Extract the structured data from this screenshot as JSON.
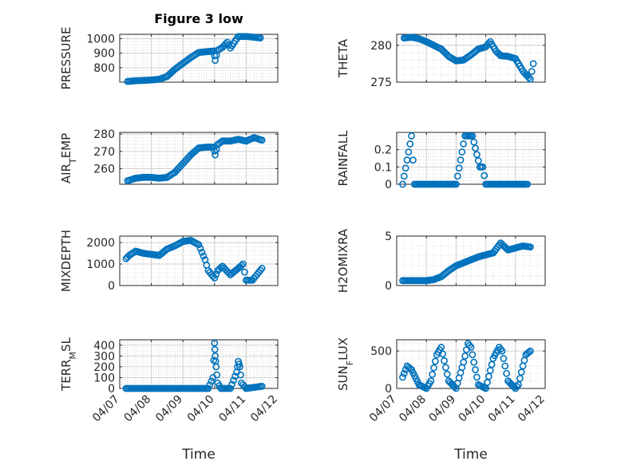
{
  "figure_title": "Figure 3 low",
  "x_axis_label": "Time",
  "x_tick_labels": [
    "04/07",
    "04/08",
    "04/09",
    "04/10",
    "04/11",
    "04/12"
  ],
  "marker_color": "#0072BD",
  "chart_data": [
    {
      "type": "scatter",
      "title": "Figure 3 low",
      "ylabel": "PRESSURE",
      "xlabel": "",
      "xlim": [
        0,
        5
      ],
      "ylim": [
        700,
        1030
      ],
      "grid": true,
      "yticks": [
        800,
        900,
        1000
      ],
      "ytick_labels": [
        "800",
        "900",
        "1000"
      ],
      "x": [
        0.25,
        0.5,
        0.75,
        1.0,
        1.25,
        1.5,
        1.75,
        2.0,
        2.25,
        2.5,
        2.75,
        2.98,
        3.02,
        3.1,
        3.25,
        3.4,
        3.5,
        3.75,
        4.0,
        4.25,
        4.45
      ],
      "y": [
        705,
        710,
        712,
        715,
        720,
        740,
        790,
        830,
        870,
        905,
        910,
        915,
        850,
        920,
        940,
        975,
        935,
        1015,
        1015,
        1010,
        1005
      ],
      "series": [
        {
          "name": "",
          "values": []
        }
      ]
    },
    {
      "type": "scatter",
      "title": "",
      "ylabel": "THETA",
      "xlabel": "",
      "xlim": [
        0,
        5
      ],
      "ylim": [
        275,
        281.5
      ],
      "grid": true,
      "yticks": [
        275,
        280
      ],
      "ytick_labels": [
        "275",
        "280"
      ],
      "x": [
        0.25,
        0.5,
        0.75,
        1.0,
        1.25,
        1.5,
        1.75,
        2.0,
        2.25,
        2.5,
        2.75,
        3.0,
        3.15,
        3.35,
        3.5,
        3.75,
        4.0,
        4.25,
        4.5,
        4.6
      ],
      "y": [
        281,
        281.1,
        280.9,
        280.5,
        280,
        279.5,
        278.5,
        277.9,
        278,
        278.7,
        279.5,
        279.8,
        280.5,
        279.2,
        278.6,
        278.5,
        278.2,
        276.5,
        275.4,
        277.5
      ]
    },
    {
      "type": "scatter",
      "title": "",
      "ylabel": "AIR_T EMP",
      "xlabel": "",
      "xlim": [
        0,
        5
      ],
      "ylim": [
        251,
        281
      ],
      "grid": true,
      "yticks": [
        260,
        270,
        280
      ],
      "ytick_labels": [
        "260",
        "270",
        "280"
      ],
      "x": [
        0.25,
        0.5,
        0.75,
        1.0,
        1.25,
        1.5,
        1.75,
        2.0,
        2.25,
        2.5,
        2.75,
        2.98,
        3.02,
        3.1,
        3.25,
        3.5,
        3.75,
        4.0,
        4.25,
        4.5
      ],
      "y": [
        253,
        254.5,
        255,
        255,
        254.5,
        255,
        258,
        263,
        268,
        272,
        272.5,
        272.5,
        268,
        274,
        276,
        276,
        277,
        276,
        278,
        276.5
      ]
    },
    {
      "type": "scatter",
      "title": "",
      "ylabel": "RAINFALL",
      "xlabel": "",
      "xlim": [
        0,
        5
      ],
      "ylim": [
        0,
        0.3
      ],
      "grid": true,
      "yticks": [
        0,
        0.1,
        0.2
      ],
      "ytick_labels": [
        "0",
        "0.1",
        "0.2"
      ],
      "x": [
        0.2,
        0.5,
        0.6,
        1.0,
        1.5,
        2.0,
        2.3,
        2.55,
        2.8,
        2.9,
        3.0,
        3.5,
        4.0,
        4.4
      ],
      "y": [
        0,
        0.28,
        0,
        0,
        0,
        0,
        0.28,
        0.28,
        0.1,
        0.1,
        0,
        0,
        0,
        0
      ]
    },
    {
      "type": "scatter",
      "title": "",
      "ylabel": "MIXDEPTH",
      "xlabel": "",
      "xlim": [
        0,
        5
      ],
      "ylim": [
        0,
        2300
      ],
      "grid": true,
      "yticks": [
        0,
        1000,
        2000
      ],
      "ytick_labels": [
        "0",
        "1000",
        "2000"
      ],
      "x": [
        0.2,
        0.3,
        0.5,
        0.75,
        1.0,
        1.25,
        1.5,
        1.75,
        2.0,
        2.25,
        2.5,
        2.7,
        2.8,
        3.0,
        3.1,
        3.25,
        3.5,
        3.75,
        3.9,
        4.0,
        4.2,
        4.5
      ],
      "y": [
        1250,
        1400,
        1600,
        1500,
        1450,
        1400,
        1700,
        1850,
        2050,
        2100,
        1900,
        1200,
        700,
        350,
        700,
        900,
        500,
        800,
        1000,
        250,
        250,
        800
      ]
    },
    {
      "type": "scatter",
      "title": "",
      "ylabel": "H2OMIXRA",
      "xlabel": "",
      "xlim": [
        0,
        5
      ],
      "ylim": [
        0,
        5
      ],
      "grid": true,
      "yticks": [
        0,
        5
      ],
      "ytick_labels": [
        "0",
        "5"
      ],
      "x": [
        0.2,
        0.5,
        0.75,
        1.0,
        1.25,
        1.5,
        1.75,
        2.0,
        2.25,
        2.5,
        2.75,
        3.0,
        3.25,
        3.5,
        3.75,
        4.0,
        4.25,
        4.5
      ],
      "y": [
        0.5,
        0.5,
        0.5,
        0.5,
        0.6,
        0.9,
        1.5,
        2.0,
        2.3,
        2.6,
        2.9,
        3.1,
        3.3,
        4.3,
        3.6,
        3.8,
        4.0,
        3.9
      ]
    },
    {
      "type": "scatter",
      "title": "",
      "ylabel": "TERR_M SL",
      "xlabel": "Time",
      "xlim": [
        0,
        5
      ],
      "ylim": [
        0,
        450
      ],
      "grid": true,
      "yticks": [
        0,
        100,
        200,
        300,
        400
      ],
      "ytick_labels": [
        "0",
        "100",
        "200",
        "300",
        "400"
      ],
      "x": [
        0.2,
        0.5,
        1.0,
        1.5,
        2.0,
        2.5,
        2.8,
        2.95,
        3.0,
        3.02,
        3.05,
        3.1,
        3.2,
        3.5,
        3.7,
        3.75,
        3.8,
        3.85,
        4.0,
        4.5
      ],
      "y": [
        0,
        0,
        0,
        0,
        0,
        0,
        0,
        100,
        420,
        300,
        200,
        50,
        0,
        0,
        150,
        250,
        200,
        50,
        0,
        20
      ]
    },
    {
      "type": "scatter",
      "title": "",
      "ylabel": "SUN_F LUX",
      "xlabel": "Time",
      "xlim": [
        0,
        5
      ],
      "ylim": [
        0,
        650
      ],
      "grid": true,
      "yticks": [
        0,
        500
      ],
      "ytick_labels": [
        "0",
        "500"
      ],
      "x": [
        0.2,
        0.35,
        0.5,
        0.75,
        1.0,
        1.15,
        1.35,
        1.5,
        1.75,
        2.0,
        2.25,
        2.4,
        2.5,
        2.75,
        3.0,
        3.25,
        3.45,
        3.55,
        3.75,
        4.0,
        4.1,
        4.25,
        4.35,
        4.5
      ],
      "y": [
        150,
        300,
        250,
        50,
        0,
        100,
        450,
        550,
        100,
        0,
        350,
        600,
        550,
        50,
        0,
        400,
        550,
        500,
        100,
        0,
        50,
        300,
        450,
        500
      ]
    }
  ]
}
